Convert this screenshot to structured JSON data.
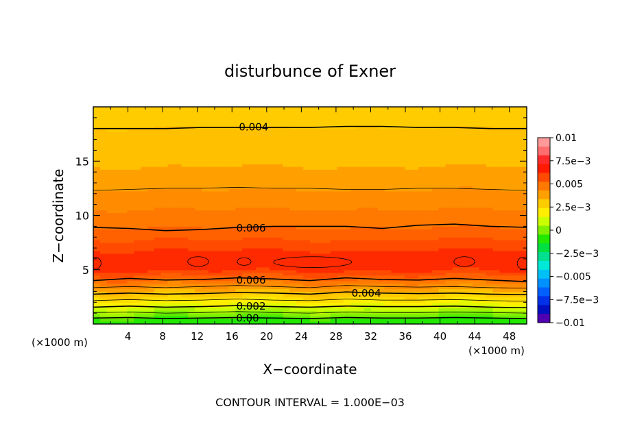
{
  "chart_data": {
    "type": "heatmap",
    "title": "disturbunce of Exner",
    "xlabel": "X−coordinate",
    "ylabel": "Z−coordinate",
    "x_unit_left": "(×1000 m)",
    "x_unit_right": "(×1000 m)",
    "xlim": [
      0,
      50
    ],
    "ylim": [
      0,
      20
    ],
    "x_ticks": [
      4,
      8,
      12,
      16,
      20,
      24,
      28,
      32,
      36,
      40,
      44,
      48
    ],
    "x_tick_labels": [
      "4",
      "8",
      "12",
      "16",
      "20",
      "24",
      "28",
      "32",
      "36",
      "40",
      "44",
      "48"
    ],
    "y_ticks": [
      5,
      10,
      15
    ],
    "y_tick_labels": [
      "5",
      "10",
      "15"
    ],
    "footer": "CONTOUR INTERVAL = 1.000E−03",
    "contour_interval": 0.001,
    "contour_labels": [
      {
        "text": "0.004",
        "x": 18.5,
        "z": 18.2
      },
      {
        "text": "0.006",
        "x": 18.2,
        "z": 8.9
      },
      {
        "text": "0.006",
        "x": 18.2,
        "z": 4.1
      },
      {
        "text": "0.004",
        "x": 31.5,
        "z": 2.9
      },
      {
        "text": "0.002",
        "x": 18.2,
        "z": 1.7
      },
      {
        "text": "0.00",
        "x": 17.8,
        "z": 0.6
      }
    ],
    "colorbar": {
      "min": -0.01,
      "max": 0.01,
      "tick_labels": [
        "0.01",
        "7.5e−3",
        "0.005",
        "2.5e−3",
        "0",
        "−2.5e−3",
        "−0.005",
        "−7.5e−3",
        "−0.01"
      ],
      "colors_top_to_bottom": [
        "#ff9a9a",
        "#ff6e6e",
        "#ff2a2a",
        "#ff1a00",
        "#ff4a00",
        "#ff7800",
        "#ffa000",
        "#ffcc00",
        "#ffee00",
        "#ccff00",
        "#80f000",
        "#22e800",
        "#00e040",
        "#00e090",
        "#00e8d8",
        "#00c0f8",
        "#0090ff",
        "#0060ff",
        "#0030e8",
        "#0010c0",
        "#5000b0"
      ]
    },
    "bands": [
      {
        "min": -0.001,
        "max": 0.0,
        "color": "#22e800"
      },
      {
        "min": 0.0,
        "max": 0.0005,
        "color": "#5ee800"
      },
      {
        "min": 0.0005,
        "max": 0.001,
        "color": "#80f000"
      },
      {
        "min": 0.001,
        "max": 0.0015,
        "color": "#a8f400"
      },
      {
        "min": 0.0015,
        "max": 0.002,
        "color": "#ccff00"
      },
      {
        "min": 0.002,
        "max": 0.0025,
        "color": "#e4f800"
      },
      {
        "min": 0.0025,
        "max": 0.003,
        "color": "#ffee00"
      },
      {
        "min": 0.003,
        "max": 0.0035,
        "color": "#ffdd00"
      },
      {
        "min": 0.0035,
        "max": 0.004,
        "color": "#ffcc00"
      },
      {
        "min": 0.004,
        "max": 0.0045,
        "color": "#ffc000"
      },
      {
        "min": 0.0045,
        "max": 0.005,
        "color": "#ffa000"
      },
      {
        "min": 0.005,
        "max": 0.0055,
        "color": "#ff8c00"
      },
      {
        "min": 0.0055,
        "max": 0.006,
        "color": "#ff7800"
      },
      {
        "min": 0.006,
        "max": 0.0065,
        "color": "#ff6000"
      },
      {
        "min": 0.0065,
        "max": 0.007,
        "color": "#ff4a00"
      },
      {
        "min": 0.007,
        "max": 0.0075,
        "color": "#ff2a00"
      }
    ],
    "contour_lines": [
      {
        "level": 0.0,
        "z": [
          0.55,
          0.6,
          0.5,
          0.55,
          0.6,
          0.55,
          0.5,
          0.6,
          0.55,
          0.55,
          0.6,
          0.55,
          0.5
        ],
        "width": 1.6
      },
      {
        "level": 0.001,
        "z": [
          1.05,
          1.1,
          1.0,
          1.05,
          1.15,
          1.05,
          1.0,
          1.1,
          1.05,
          1.05,
          1.1,
          1.05,
          1.0
        ],
        "width": 0.8
      },
      {
        "level": 0.002,
        "z": [
          1.55,
          1.65,
          1.55,
          1.6,
          1.7,
          1.6,
          1.55,
          1.65,
          1.6,
          1.6,
          1.65,
          1.55,
          1.5
        ],
        "width": 1.6
      },
      {
        "level": 0.003,
        "z": [
          2.15,
          2.25,
          2.15,
          2.2,
          2.3,
          2.2,
          2.15,
          2.3,
          2.2,
          2.2,
          2.25,
          2.15,
          2.1
        ],
        "width": 0.8
      },
      {
        "level": 0.004,
        "z": [
          2.75,
          2.85,
          2.75,
          2.8,
          2.9,
          2.85,
          2.75,
          2.95,
          2.85,
          2.8,
          2.85,
          2.75,
          2.7
        ],
        "width": 1.6
      },
      {
        "level": 0.005,
        "z": [
          3.35,
          3.45,
          3.35,
          3.45,
          3.55,
          3.45,
          3.35,
          3.55,
          3.45,
          3.4,
          3.45,
          3.35,
          3.3
        ],
        "width": 0.8
      },
      {
        "level": 0.006,
        "z": [
          4.0,
          4.2,
          4.05,
          4.1,
          4.25,
          4.15,
          4.0,
          4.25,
          4.1,
          4.05,
          4.2,
          4.05,
          3.9
        ],
        "width": 1.6
      },
      {
        "level": 0.006,
        "z": [
          8.9,
          8.8,
          8.6,
          8.7,
          8.9,
          9.0,
          9.0,
          9.0,
          8.8,
          9.1,
          9.2,
          9.0,
          8.9
        ],
        "width": 1.6
      },
      {
        "level": 0.005,
        "z": [
          12.3,
          12.4,
          12.5,
          12.5,
          12.6,
          12.5,
          12.5,
          12.4,
          12.4,
          12.5,
          12.5,
          12.4,
          12.3
        ],
        "width": 0.8
      },
      {
        "level": 0.004,
        "z": [
          18.0,
          18.0,
          18.0,
          18.1,
          18.1,
          18.1,
          18.1,
          18.2,
          18.2,
          18.1,
          18.1,
          18.0,
          18.0
        ],
        "width": 1.6
      }
    ],
    "closed_contours": [
      {
        "level": 0.0075,
        "x": 0.2,
        "z": 5.6,
        "rx": 0.7,
        "rz": 0.55
      },
      {
        "level": 0.0075,
        "x": 12.1,
        "z": 5.75,
        "rx": 1.2,
        "rz": 0.45
      },
      {
        "level": 0.0075,
        "x": 17.4,
        "z": 5.75,
        "rx": 0.8,
        "rz": 0.35
      },
      {
        "level": 0.0075,
        "x": 25.3,
        "z": 5.7,
        "rx": 4.5,
        "rz": 0.5
      },
      {
        "level": 0.0075,
        "x": 42.8,
        "z": 5.75,
        "rx": 1.2,
        "rz": 0.45
      },
      {
        "level": 0.0075,
        "x": 49.6,
        "z": 5.6,
        "rx": 0.7,
        "rz": 0.55
      }
    ]
  }
}
